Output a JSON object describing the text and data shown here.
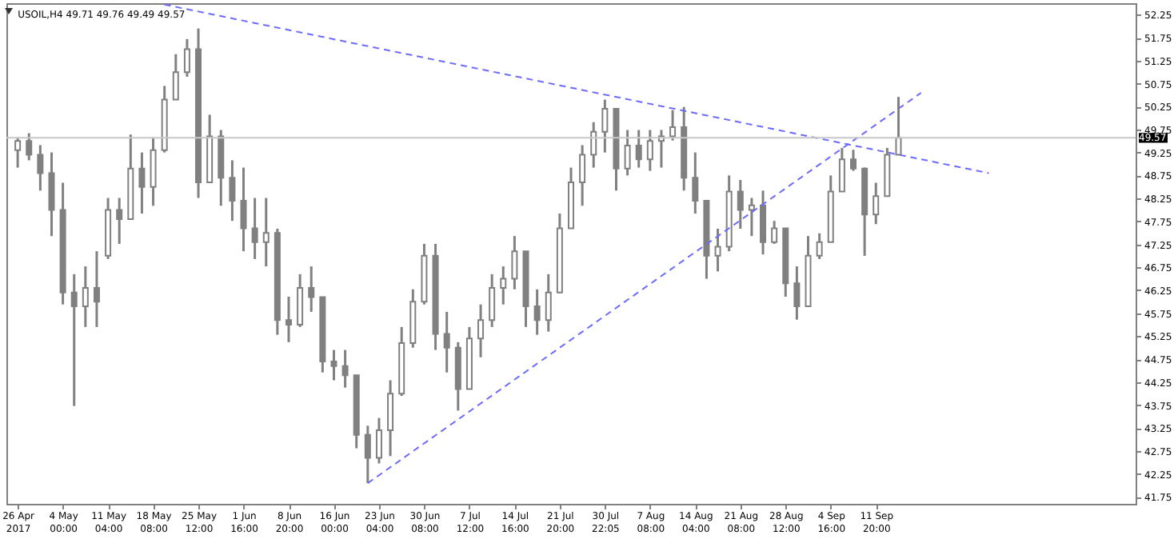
{
  "chart_data": {
    "type": "candlestick",
    "title": "USOIL,H4  49.71 49.76 49.49 49.57",
    "color": "#808080",
    "categories": [
      "26 Apr 2017",
      null,
      null,
      null,
      "4 May 00:00",
      null,
      null,
      null,
      "11 May 04:00",
      null,
      null,
      null,
      "18 May 08:00",
      null,
      null,
      null,
      "25 May 12:00",
      null,
      null,
      null,
      "1 Jun 16:00",
      null,
      null,
      null,
      "8 Jun 20:00",
      null,
      null,
      null,
      "16 Jun 00:00",
      null,
      null,
      null,
      "23 Jun 04:00",
      null,
      null,
      null,
      "30 Jun 08:00",
      null,
      null,
      null,
      "7 Jul 12:00",
      null,
      null,
      null,
      "14 Jul 16:00",
      null,
      null,
      null,
      "21 Jul 20:00",
      null,
      null,
      null,
      "30 Jul 22:05",
      null,
      null,
      null,
      "7 Aug 08:00",
      null,
      null,
      null,
      "14 Aug 04:00",
      null,
      null,
      null,
      "21 Aug 08:00",
      null,
      null,
      null,
      "28 Aug 12:00",
      null,
      null,
      null,
      "4 Sep 16:00",
      null,
      null,
      null,
      "11 Sep 20:00",
      null,
      null,
      null,
      null,
      null,
      null,
      null,
      null,
      null,
      null,
      null,
      null,
      null,
      null,
      null,
      null,
      null,
      null,
      null,
      null,
      null,
      null
    ],
    "ohlc": [
      [
        49.3,
        49.58,
        48.92,
        49.5
      ],
      [
        49.5,
        49.67,
        49.08,
        49.2
      ],
      [
        49.2,
        49.41,
        48.42,
        48.8
      ],
      [
        48.8,
        49.25,
        47.43,
        48.0
      ],
      [
        48.0,
        48.59,
        45.94,
        46.2
      ],
      [
        46.2,
        46.6,
        43.73,
        45.9
      ],
      [
        45.9,
        46.77,
        45.45,
        46.3
      ],
      [
        46.3,
        47.1,
        45.45,
        46.0
      ],
      [
        47.0,
        48.26,
        46.93,
        48.0
      ],
      [
        48.0,
        48.26,
        47.26,
        47.8
      ],
      [
        47.8,
        49.64,
        47.8,
        48.9
      ],
      [
        48.9,
        49.25,
        47.92,
        48.5
      ],
      [
        48.5,
        49.58,
        48.09,
        49.3
      ],
      [
        49.3,
        50.7,
        49.25,
        50.4
      ],
      [
        50.4,
        51.39,
        50.4,
        51.0
      ],
      [
        51.0,
        51.72,
        50.9,
        51.5
      ],
      [
        51.5,
        51.95,
        48.26,
        48.6
      ],
      [
        48.6,
        50.07,
        48.59,
        49.6
      ],
      [
        49.6,
        49.74,
        48.09,
        48.7
      ],
      [
        48.7,
        49.08,
        47.76,
        48.2
      ],
      [
        48.2,
        48.92,
        47.1,
        47.6
      ],
      [
        47.6,
        48.26,
        46.93,
        47.3
      ],
      [
        47.3,
        48.26,
        46.77,
        47.5
      ],
      [
        47.5,
        47.59,
        45.28,
        45.6
      ],
      [
        45.6,
        46.11,
        45.12,
        45.5
      ],
      [
        45.5,
        46.6,
        45.45,
        46.3
      ],
      [
        46.3,
        46.77,
        45.78,
        46.1
      ],
      [
        46.1,
        46.11,
        44.46,
        44.7
      ],
      [
        44.7,
        44.95,
        44.29,
        44.6
      ],
      [
        44.6,
        44.95,
        44.13,
        44.4
      ],
      [
        44.4,
        44.4,
        42.81,
        43.1
      ],
      [
        43.1,
        43.3,
        42.05,
        42.6
      ],
      [
        42.6,
        43.47,
        42.48,
        43.2
      ],
      [
        43.2,
        44.29,
        42.64,
        44.0
      ],
      [
        44.0,
        45.45,
        43.95,
        45.1
      ],
      [
        45.1,
        46.27,
        45.0,
        46.0
      ],
      [
        46.0,
        47.26,
        45.94,
        47.0
      ],
      [
        47.0,
        47.26,
        44.95,
        45.3
      ],
      [
        45.3,
        45.78,
        44.46,
        45.0
      ],
      [
        45.0,
        45.12,
        43.63,
        44.1
      ],
      [
        44.1,
        45.45,
        44.1,
        45.2
      ],
      [
        45.2,
        45.94,
        44.79,
        45.6
      ],
      [
        45.6,
        46.6,
        45.45,
        46.3
      ],
      [
        46.3,
        46.77,
        45.94,
        46.5
      ],
      [
        46.5,
        47.43,
        46.27,
        47.1
      ],
      [
        47.1,
        47.1,
        45.45,
        45.9
      ],
      [
        45.9,
        46.27,
        45.28,
        45.6
      ],
      [
        45.6,
        46.6,
        45.35,
        46.2
      ],
      [
        46.2,
        47.92,
        46.2,
        47.6
      ],
      [
        47.6,
        48.92,
        47.59,
        48.6
      ],
      [
        48.6,
        49.41,
        48.09,
        49.2
      ],
      [
        49.2,
        49.91,
        48.92,
        49.7
      ],
      [
        49.7,
        50.4,
        49.25,
        50.2
      ],
      [
        50.2,
        50.2,
        48.42,
        48.9
      ],
      [
        48.9,
        49.74,
        48.75,
        49.4
      ],
      [
        49.4,
        49.74,
        48.92,
        49.1
      ],
      [
        49.1,
        49.74,
        48.85,
        49.5
      ],
      [
        49.5,
        49.74,
        48.92,
        49.6
      ],
      [
        49.6,
        50.17,
        49.51,
        49.8
      ],
      [
        49.8,
        50.24,
        48.42,
        48.7
      ],
      [
        48.7,
        49.25,
        47.92,
        48.2
      ],
      [
        48.2,
        48.2,
        46.5,
        47.0
      ],
      [
        47.0,
        47.59,
        46.66,
        47.2
      ],
      [
        47.2,
        48.75,
        47.1,
        48.4
      ],
      [
        48.4,
        48.65,
        47.59,
        48.0
      ],
      [
        48.0,
        48.26,
        47.43,
        48.1
      ],
      [
        48.1,
        48.42,
        47.03,
        47.3
      ],
      [
        47.3,
        47.76,
        47.26,
        47.6
      ],
      [
        47.6,
        47.6,
        46.11,
        46.4
      ],
      [
        46.4,
        46.77,
        45.61,
        45.9
      ],
      [
        45.9,
        47.43,
        45.9,
        47.0
      ],
      [
        47.0,
        47.49,
        46.93,
        47.3
      ],
      [
        47.3,
        48.75,
        47.3,
        48.4
      ],
      [
        48.4,
        49.35,
        48.4,
        49.1
      ],
      [
        49.1,
        49.31,
        48.85,
        48.9
      ],
      [
        48.9,
        48.92,
        47.0,
        47.9
      ],
      [
        47.9,
        48.59,
        47.69,
        48.3
      ],
      [
        48.3,
        49.35,
        48.3,
        49.2
      ],
      [
        49.2,
        50.46,
        49.2,
        49.57
      ],
      null,
      null,
      null,
      null,
      null,
      null,
      null,
      null,
      null,
      null,
      null,
      null,
      null,
      null,
      null,
      null,
      null,
      null,
      null,
      null
    ],
    "series": [
      {
        "type": "line",
        "color": "#6b6bff",
        "line_style": "dashed",
        "values": [
          null,
          null,
          null,
          null,
          null,
          null,
          null,
          null,
          null,
          null,
          null,
          null,
          null,
          52.47,
          null,
          null,
          null,
          null,
          null,
          null,
          null,
          null,
          null,
          null,
          null,
          null,
          null,
          null,
          null,
          null,
          null,
          null,
          null,
          null,
          null,
          null,
          null,
          null,
          null,
          null,
          null,
          null,
          null,
          null,
          null,
          null,
          null,
          null,
          null,
          null,
          null,
          null,
          null,
          null,
          null,
          null,
          null,
          null,
          null,
          null,
          null,
          null,
          null,
          null,
          null,
          null,
          null,
          null,
          null,
          null,
          null,
          null,
          null,
          null,
          null,
          null,
          null,
          null,
          null,
          null,
          null,
          null,
          null,
          null,
          null,
          null,
          48.8,
          null,
          null,
          null,
          null,
          null,
          null,
          null,
          null,
          null,
          null,
          null,
          null
        ]
      },
      {
        "type": "line",
        "color": "#6b6bff",
        "line_style": "dashed",
        "values": [
          null,
          null,
          null,
          null,
          null,
          null,
          null,
          null,
          null,
          null,
          null,
          null,
          null,
          null,
          null,
          null,
          null,
          null,
          null,
          null,
          null,
          null,
          null,
          null,
          null,
          null,
          null,
          null,
          null,
          null,
          null,
          42.05,
          null,
          null,
          null,
          null,
          null,
          null,
          null,
          null,
          null,
          null,
          null,
          null,
          null,
          null,
          null,
          null,
          null,
          null,
          null,
          null,
          null,
          null,
          null,
          null,
          null,
          null,
          null,
          null,
          null,
          null,
          null,
          null,
          null,
          null,
          null,
          null,
          null,
          null,
          null,
          null,
          null,
          null,
          null,
          null,
          null,
          null,
          null,
          null,
          50.55,
          null,
          null,
          null,
          null,
          null,
          null,
          null,
          null,
          null,
          null,
          null,
          null,
          null,
          null,
          null,
          null,
          null,
          null
        ]
      }
    ],
    "ylim": [
      41.6,
      52.5
    ],
    "yticks": [
      41.75,
      42.25,
      42.75,
      43.25,
      43.75,
      44.25,
      44.75,
      45.25,
      45.75,
      46.25,
      46.75,
      47.25,
      47.75,
      48.25,
      48.75,
      49.25,
      49.75,
      50.25,
      50.75,
      51.25,
      51.75,
      52.25
    ],
    "ref_lines": [
      {
        "axis": "y",
        "value": 49.57,
        "label": "49.57",
        "color": "#c8c8c8"
      }
    ]
  }
}
